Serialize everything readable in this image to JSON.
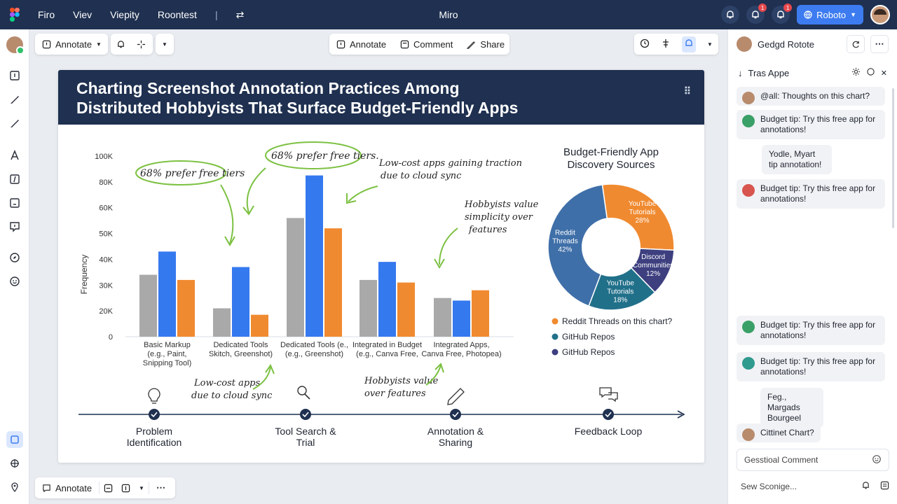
{
  "topbar": {
    "menu": [
      "Firo",
      "Viev",
      "Viepity",
      "Roontest"
    ],
    "app_title": "Miro",
    "badge_count_1": "1",
    "badge_count_2": "1",
    "share_label": "Roboto"
  },
  "toolbar_left": {
    "annotate_label": "Annotate"
  },
  "toolbar_center": {
    "annotate_label": "Annotate",
    "comment_label": "Comment",
    "share_label": "Share"
  },
  "toolbar_bottom": {
    "annotate_label": "Annotate"
  },
  "board": {
    "title_line1": "Charting Screenshot Annotation Practices Among",
    "title_line2": "Distributed Hobbyists That Surface Budget-Friendly Apps",
    "annotations": {
      "a1": "68% prefer free tiers",
      "a2": "68% prefer free tiers.",
      "a3_line1": "Low-cost apps gaining traction",
      "a3_line2": "due to cloud sync",
      "a4_line1": "Hobbyists value",
      "a4_line2": "simplicity over",
      "a4_line3": "features",
      "a5_line1": "Low-cost apps",
      "a5_line2": "due to cloud sync",
      "a6_line1": "Hobbyists value",
      "a6_line2": "over features"
    },
    "timeline": [
      {
        "label_line1": "Problem",
        "label_line2": "Identification",
        "icon": "lightbulb-icon"
      },
      {
        "label_line1": "Tool Search &",
        "label_line2": "Trial",
        "icon": "magnifier-icon"
      },
      {
        "label_line1": "Annotation &",
        "label_line2": "Sharing",
        "icon": "pencil-icon"
      },
      {
        "label_line1": "Feedback Loop",
        "label_line2": "",
        "icon": "chat-bubbles-icon"
      }
    ]
  },
  "chart_data": [
    {
      "type": "bar",
      "ylabel": "Frequency",
      "ylim": [
        0,
        100000
      ],
      "y_ticks": [
        "0",
        "20K",
        "30K",
        "40K",
        "50K",
        "60K",
        "80K",
        "100K"
      ],
      "categories": [
        [
          "Basic Markup",
          "(e.g., Paint,",
          "Snipping Tool)"
        ],
        [
          "Dedicated Tools",
          "Skitch, Greenshot)"
        ],
        [
          "Dedicated Tools (e.,",
          "(e.g., Greenshot)"
        ],
        [
          "Integrated in Budget",
          "(e.g., Canva Free,"
        ],
        [
          "Integrated Apps,",
          "Canva Free, Photopea)"
        ]
      ],
      "series": [
        {
          "color": "#a9a9a9",
          "values": [
            34000,
            21000,
            56000,
            32000,
            25000
          ]
        },
        {
          "color": "#3579ef",
          "values": [
            43000,
            37000,
            85000,
            39000,
            24000
          ]
        },
        {
          "color": "#f08a30",
          "values": [
            32000,
            17000,
            52000,
            31000,
            28000
          ]
        }
      ]
    },
    {
      "type": "pie",
      "title_line1": "Budget-Friendly App",
      "title_line2": "Discovery Sources",
      "slices": [
        {
          "label_line1": "Reddit",
          "label_line2": "Threads",
          "label_line3": "42%",
          "value": 42,
          "color": "#3f6fa8"
        },
        {
          "label_line1": "YouTube",
          "label_line2": "Tutorials",
          "label_line3": "28%",
          "value": 28,
          "color": "#f08a30"
        },
        {
          "label_line1": "Discord",
          "label_line2": "Communities",
          "label_line3": "12%",
          "value": 12,
          "color": "#3d3f7f"
        },
        {
          "label_line1": "YouTube",
          "label_line2": "Tutorials",
          "label_line3": "18%",
          "value": 18,
          "color": "#21708a"
        }
      ],
      "legend": [
        {
          "label": "Reddit Threads on this chart?",
          "color": "#f08a30"
        },
        {
          "label": "GitHub Repos",
          "color": "#21708a"
        },
        {
          "label": "GitHub Repos",
          "color": "#3d3f7f"
        }
      ]
    }
  ],
  "right_panel": {
    "user_name": "Gedgd Rotote",
    "subheader": "Tras Appe",
    "messages": [
      "@all: Thoughts on this chart?",
      "Budget tip: Try this free app for annotations!",
      "Yodle, Myart tip annotation!",
      "Budget tip: Try this free app for annotations!",
      "Budget tip: Try this free app for annotations!",
      "Budget tip: Try this free app for annotations!",
      "Feg., Margads Bourgeel",
      "Cittinet Chart?"
    ],
    "comment_placeholder": "Gesstioal Comment",
    "footer_text": "Sew Sconige..."
  }
}
